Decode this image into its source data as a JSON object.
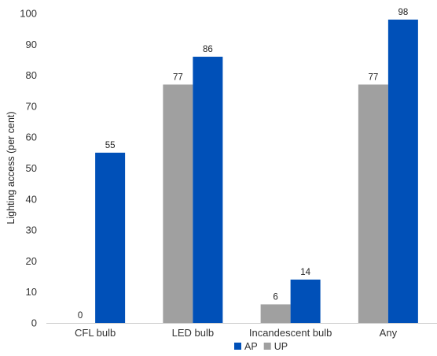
{
  "chart_data": {
    "type": "bar",
    "title": "",
    "xlabel": "",
    "ylabel": "Lighting access (per cent)",
    "ylim": [
      0,
      100
    ],
    "yticks": [
      0,
      10,
      20,
      30,
      40,
      50,
      60,
      70,
      80,
      90,
      100
    ],
    "grid": false,
    "legend_position": "bottom",
    "categories": [
      "CFL bulb",
      "LED bulb",
      "Incandescent bulb",
      "Any"
    ],
    "series": [
      {
        "name": "UP",
        "color": "#a0a0a0",
        "values": [
          0,
          77,
          6,
          77
        ]
      },
      {
        "name": "AP",
        "color": "#0050b8",
        "values": [
          55,
          86,
          14,
          98
        ]
      }
    ],
    "legend_order": [
      "AP",
      "UP"
    ]
  }
}
